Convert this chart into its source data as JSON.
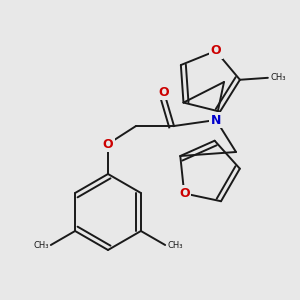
{
  "bg_color": "#e8e8e8",
  "bond_color": "#1a1a1a",
  "O_color": "#cc0000",
  "N_color": "#0000cc",
  "lw": 1.4,
  "figsize": [
    3.0,
    3.0
  ],
  "dpi": 100,
  "xlim": [
    0,
    300
  ],
  "ylim": [
    0,
    300
  ]
}
